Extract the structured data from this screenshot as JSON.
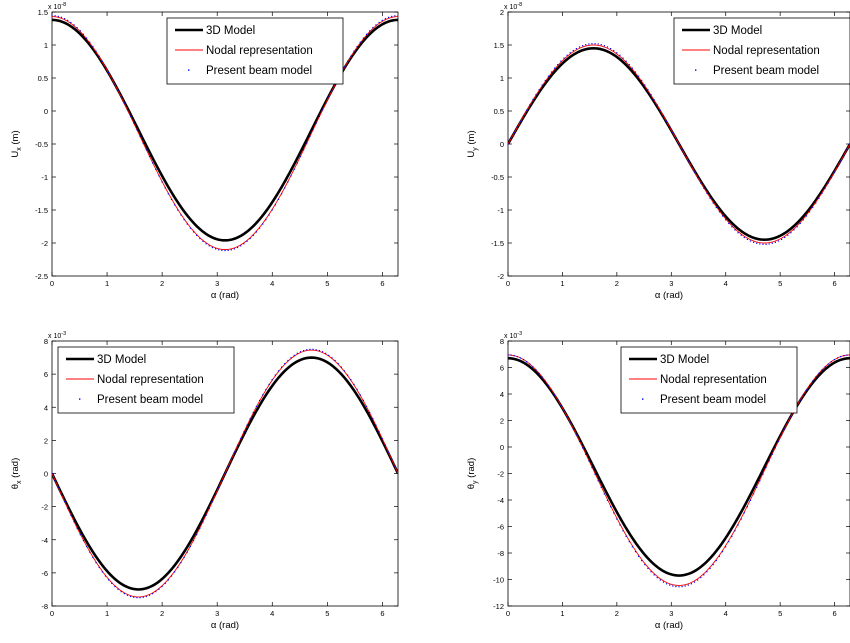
{
  "chart_data": [
    {
      "type": "line",
      "xlabel": "α  (rad)",
      "ylabel": "U",
      "ylabel_sub": "x",
      "ylabel_unit": " (m)",
      "exponent": "x 10",
      "exponent_power": "-8",
      "xlim": [
        0,
        6.2832
      ],
      "ylim": [
        -2.5,
        1.5
      ],
      "xticks": [
        0,
        1,
        2,
        3,
        4,
        5,
        6
      ],
      "yticks": [
        -2.5,
        -2,
        -1.5,
        -1,
        -0.5,
        0,
        0.5,
        1,
        1.5
      ],
      "ytick_labels": [
        "-2.5",
        "-2",
        "-1.5",
        "-1",
        "-0.5",
        "0",
        "0.5",
        "1",
        "1.5"
      ],
      "legend_position": "top-center",
      "curve": "cos",
      "series": [
        {
          "name": "3D Model",
          "style": "thick",
          "color": "#000000",
          "offset": -0.29,
          "amplitude": 1.67
        },
        {
          "name": "Nodal representation",
          "style": "thin",
          "color": "#ff0000",
          "offset": -0.335,
          "amplitude": 1.765
        },
        {
          "name": "Present beam model",
          "style": "dots",
          "color": "#0000ff",
          "offset": -0.335,
          "amplitude": 1.78
        }
      ]
    },
    {
      "type": "line",
      "xlabel": "α  (rad)",
      "ylabel": "U",
      "ylabel_sub": "y",
      "ylabel_unit": " (m)",
      "exponent": "x 10",
      "exponent_power": "-8",
      "xlim": [
        0,
        6.2832
      ],
      "ylim": [
        -2,
        2
      ],
      "xticks": [
        0,
        1,
        2,
        3,
        4,
        5,
        6
      ],
      "yticks": [
        -2,
        -1.5,
        -1,
        -0.5,
        0,
        0.5,
        1,
        1.5,
        2
      ],
      "ytick_labels": [
        "-2",
        "-1.5",
        "-1",
        "-0.5",
        "0",
        "0.5",
        "1",
        "1.5",
        "2"
      ],
      "legend_position": "top-right",
      "curve": "sin",
      "series": [
        {
          "name": "3D Model",
          "style": "thick",
          "color": "#000000",
          "offset": 0,
          "amplitude": 1.45
        },
        {
          "name": "Nodal representation",
          "style": "thin",
          "color": "#ff0000",
          "offset": 0,
          "amplitude": 1.5
        },
        {
          "name": "Present beam model",
          "style": "dots",
          "color": "#0000ff",
          "offset": 0,
          "amplitude": 1.52
        }
      ]
    },
    {
      "type": "line",
      "xlabel": "α  (rad)",
      "ylabel": "θ",
      "ylabel_sub": "x",
      "ylabel_unit": " (rad)",
      "exponent": "x 10",
      "exponent_power": "-3",
      "xlim": [
        0,
        6.2832
      ],
      "ylim": [
        -8,
        8
      ],
      "xticks": [
        0,
        1,
        2,
        3,
        4,
        5,
        6
      ],
      "yticks": [
        -8,
        -6,
        -4,
        -2,
        0,
        2,
        4,
        6,
        8
      ],
      "ytick_labels": [
        "-8",
        "-6",
        "-4",
        "-2",
        "0",
        "2",
        "4",
        "6",
        "8"
      ],
      "legend_position": "top-left",
      "curve": "-sin",
      "series": [
        {
          "name": "3D Model",
          "style": "thick",
          "color": "#000000",
          "offset": 0,
          "amplitude": 7.0
        },
        {
          "name": "Nodal representation",
          "style": "thin",
          "color": "#ff0000",
          "offset": 0,
          "amplitude": 7.45
        },
        {
          "name": "Present beam model",
          "style": "dots",
          "color": "#0000ff",
          "offset": 0,
          "amplitude": 7.5
        }
      ]
    },
    {
      "type": "line",
      "xlabel": "α  (rad)",
      "ylabel": "θ",
      "ylabel_sub": "y",
      "ylabel_unit": " (rad)",
      "exponent": "x 10",
      "exponent_power": "-3",
      "xlim": [
        0,
        6.2832
      ],
      "ylim": [
        -12,
        8
      ],
      "xticks": [
        0,
        1,
        2,
        3,
        4,
        5,
        6
      ],
      "yticks": [
        -12,
        -10,
        -8,
        -6,
        -4,
        -2,
        0,
        2,
        4,
        6,
        8
      ],
      "ytick_labels": [
        "-12",
        "-10",
        "-8",
        "-6",
        "-4",
        "-2",
        "0",
        "2",
        "4",
        "6",
        "8"
      ],
      "legend_position": "top-center",
      "curve": "cos",
      "series": [
        {
          "name": "3D Model",
          "style": "thick",
          "color": "#000000",
          "offset": -1.5,
          "amplitude": 8.2
        },
        {
          "name": "Nodal representation",
          "style": "thin",
          "color": "#ff0000",
          "offset": -1.75,
          "amplitude": 8.7
        },
        {
          "name": "Present beam model",
          "style": "dots",
          "color": "#0000ff",
          "offset": -1.8,
          "amplitude": 8.75
        }
      ]
    }
  ]
}
